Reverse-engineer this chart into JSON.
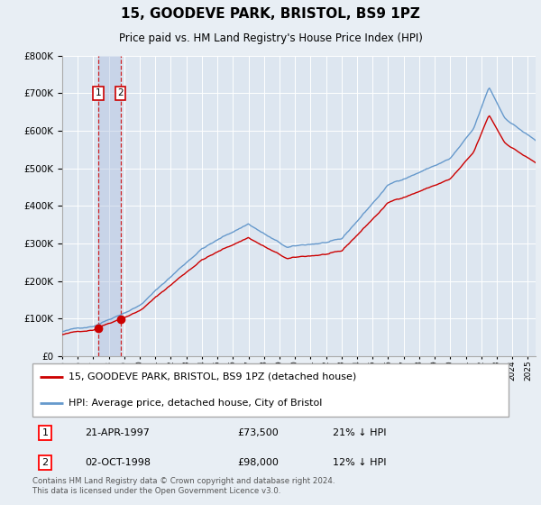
{
  "title": "15, GOODEVE PARK, BRISTOL, BS9 1PZ",
  "subtitle": "Price paid vs. HM Land Registry's House Price Index (HPI)",
  "hpi_color": "#6699cc",
  "sale_color": "#cc0000",
  "dashed_color": "#cc0000",
  "background_color": "#e8eef4",
  "plot_bg_color": "#dde6f0",
  "legend_label_red": "15, GOODEVE PARK, BRISTOL, BS9 1PZ (detached house)",
  "legend_label_blue": "HPI: Average price, detached house, City of Bristol",
  "sale1_label": "1",
  "sale1_date": "21-APR-1997",
  "sale1_price": "£73,500",
  "sale1_hpi": "21% ↓ HPI",
  "sale2_label": "2",
  "sale2_date": "02-OCT-1998",
  "sale2_price": "£98,000",
  "sale2_hpi": "12% ↓ HPI",
  "footnote": "Contains HM Land Registry data © Crown copyright and database right 2024.\nThis data is licensed under the Open Government Licence v3.0.",
  "ylim": [
    0,
    800000
  ],
  "yticks": [
    0,
    100000,
    200000,
    300000,
    400000,
    500000,
    600000,
    700000,
    800000
  ],
  "sale1_x": 1997.31,
  "sale1_y": 73500,
  "sale2_x": 1998.75,
  "sale2_y": 98000,
  "xmin": 1995.0,
  "xmax": 2025.5
}
